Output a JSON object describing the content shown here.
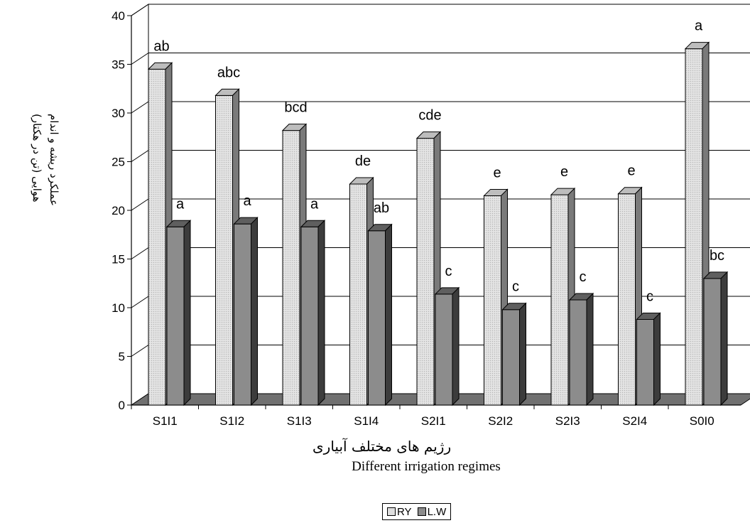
{
  "chart_data": {
    "type": "bar",
    "categories": [
      "S1I1",
      "S1I2",
      "S1I3",
      "S1I4",
      "S2I1",
      "S2I2",
      "S2I3",
      "S2I4",
      "S0I0"
    ],
    "series": [
      {
        "name": "RY",
        "values": [
          34.5,
          31.8,
          28.2,
          22.7,
          27.4,
          21.5,
          21.6,
          21.7,
          36.6
        ],
        "color": "#dedede",
        "labels": [
          "ab",
          "abc",
          "bcd",
          "de",
          "cde",
          "e",
          "e",
          "e",
          "a"
        ]
      },
      {
        "name": "L.W",
        "values": [
          18.3,
          18.6,
          18.3,
          17.9,
          11.4,
          9.8,
          10.8,
          8.8,
          13.0
        ],
        "color": "#8c8c8c",
        "labels": [
          "a",
          "a",
          "a",
          "ab",
          "c",
          "c",
          "c",
          "c",
          "bc"
        ]
      }
    ],
    "ylim": [
      0,
      40
    ],
    "yticks": [
      "0",
      "5",
      "10",
      "15",
      "20",
      "25",
      "30",
      "35",
      "40"
    ],
    "grid": true,
    "legend_position": "bottom",
    "ylabel": "عملکرد ریشه و اندام\nهوایی (تن در هکتار)",
    "xlabel_persian": "رژیم های مختلف آبیاری",
    "xlabel": "Different irrigation regimes"
  }
}
